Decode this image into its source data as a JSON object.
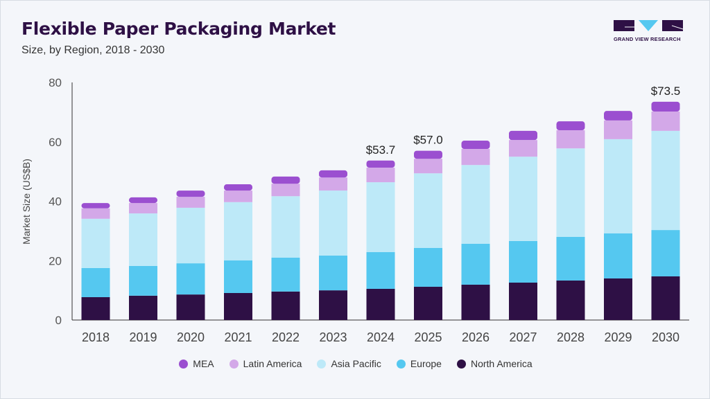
{
  "header": {
    "title": "Flexible Paper Packaging Market",
    "subtitle": "Size, by Region, 2018 - 2030",
    "logo_text": "GRAND VIEW RESEARCH"
  },
  "chart_data": {
    "type": "bar",
    "stacked": true,
    "title": "Flexible Paper Packaging Market",
    "subtitle": "Size, by Region, 2018 - 2030",
    "xlabel": "",
    "ylabel": "Market Size (US$B)",
    "ylim": [
      0,
      80
    ],
    "yticks": [
      0,
      20,
      40,
      60,
      80
    ],
    "grid": false,
    "legend_position": "bottom",
    "categories": [
      "2018",
      "2019",
      "2020",
      "2021",
      "2022",
      "2023",
      "2024",
      "2025",
      "2026",
      "2027",
      "2028",
      "2029",
      "2030"
    ],
    "series": [
      {
        "name": "North America",
        "color": "#2e1045",
        "values": [
          7.7,
          8.2,
          8.6,
          9.1,
          9.6,
          10.0,
          10.5,
          11.2,
          11.9,
          12.6,
          13.3,
          14.0,
          14.7
        ]
      },
      {
        "name": "Europe",
        "color": "#55c8f0",
        "values": [
          9.8,
          10.0,
          10.5,
          11.0,
          11.4,
          11.7,
          12.4,
          13.1,
          13.8,
          14.0,
          14.7,
          15.2,
          15.6
        ]
      },
      {
        "name": "Asia Pacific",
        "color": "#bde9f8",
        "values": [
          16.6,
          17.7,
          18.7,
          19.6,
          20.7,
          21.9,
          23.5,
          25.1,
          26.5,
          28.4,
          29.8,
          31.7,
          33.4
        ]
      },
      {
        "name": "Latin America",
        "color": "#d3a8e8",
        "values": [
          3.5,
          3.5,
          3.7,
          3.9,
          4.2,
          4.4,
          4.9,
          4.9,
          5.4,
          5.6,
          6.1,
          6.3,
          6.5
        ]
      },
      {
        "name": "MEA",
        "color": "#9b4fd0",
        "values": [
          1.8,
          1.9,
          2.1,
          2.1,
          2.4,
          2.4,
          2.4,
          2.7,
          2.8,
          3.1,
          3.0,
          3.2,
          3.3
        ]
      }
    ],
    "annotations": [
      {
        "category": "2024",
        "text": "$53.7"
      },
      {
        "category": "2025",
        "text": "$57.0"
      },
      {
        "category": "2030",
        "text": "$73.5"
      }
    ],
    "legend_order": [
      "MEA",
      "Latin America",
      "Asia Pacific",
      "Europe",
      "North America"
    ]
  }
}
